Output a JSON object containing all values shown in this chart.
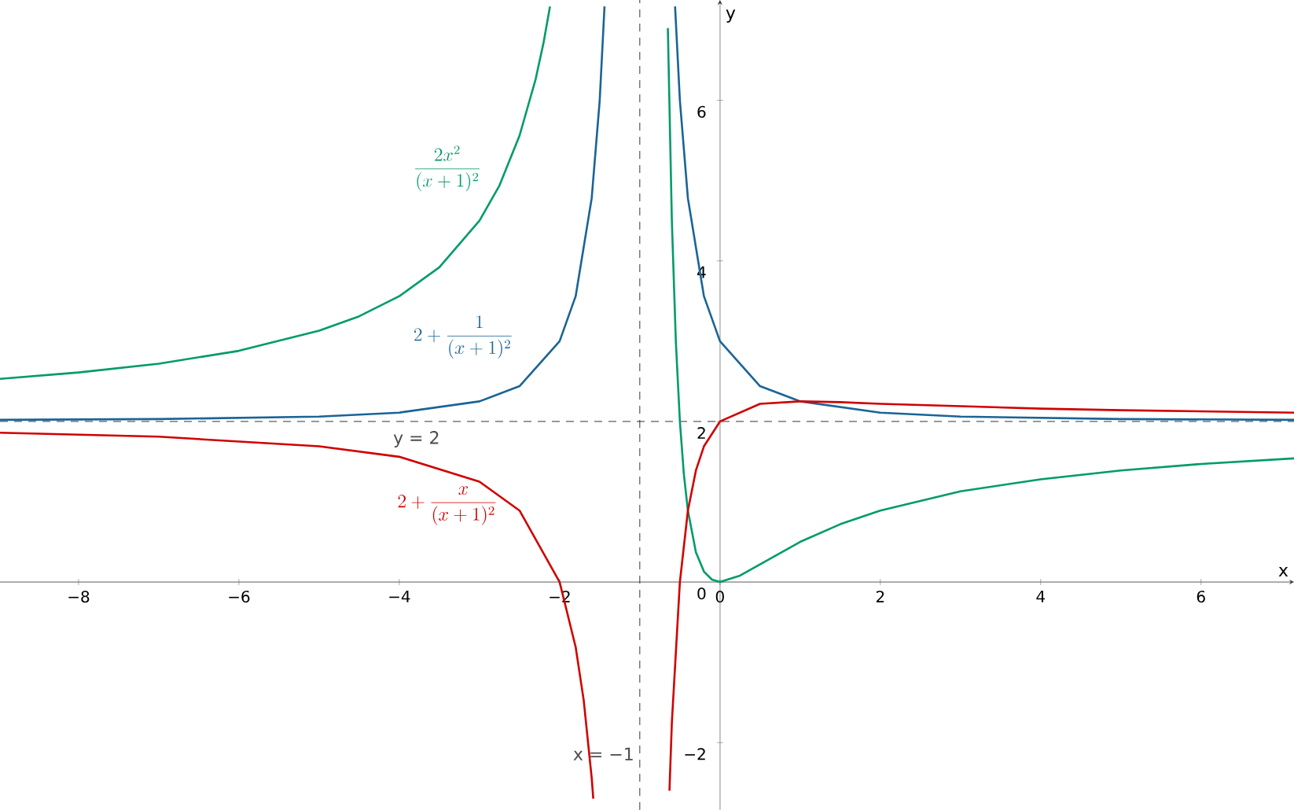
{
  "chart_data": {
    "type": "line",
    "xlabel": "x",
    "ylabel": "y",
    "xlim": [
      -8.98,
      7.16
    ],
    "ylim": [
      -2.84,
      7.25
    ],
    "xticks": [
      {
        "value": -8,
        "label": "−8"
      },
      {
        "value": -6,
        "label": "−6"
      },
      {
        "value": -4,
        "label": "−4"
      },
      {
        "value": -2,
        "label": "−2"
      },
      {
        "value": 0,
        "label": "0"
      },
      2,
      4,
      6
    ],
    "yticks": [
      {
        "value": -2,
        "label": "−2"
      },
      {
        "value": 0,
        "label": "0"
      },
      2,
      4,
      6
    ],
    "ref_lines": [
      {
        "axis": "x",
        "value": -1,
        "label": "x = −1",
        "color": "#000000",
        "line_style": "dashed"
      },
      {
        "axis": "y",
        "value": 2,
        "label": "y =  2",
        "color": "#000000",
        "line_style": "dashed"
      }
    ],
    "series": [
      {
        "name": "\\frac{2x^2}{(x+1)^2}",
        "color": "#009b6b",
        "x": [
          -8.98,
          -8,
          -7,
          -6,
          -5,
          -4.5,
          -4,
          -3.5,
          -3,
          -2.75,
          -2.5,
          -2.3,
          -2.2,
          -2.12,
          -1,
          -0.65,
          -0.6,
          -0.55,
          -0.5,
          -0.45,
          -0.4,
          -0.3,
          -0.2,
          -0.1,
          0,
          0.25,
          0.5,
          1,
          1.5,
          2,
          3,
          4,
          5,
          6,
          7.16
        ],
        "values": [
          2.53,
          2.61,
          2.72,
          2.88,
          3.13,
          3.31,
          3.56,
          3.92,
          4.5,
          4.94,
          5.56,
          6.26,
          6.72,
          7.17,
          null,
          6.9,
          4.5,
          2.99,
          2,
          1.34,
          0.89,
          0.37,
          0.13,
          0.03,
          0,
          0.08,
          0.22,
          0.5,
          0.72,
          0.89,
          1.13,
          1.28,
          1.39,
          1.47,
          1.54
        ]
      },
      {
        "name": "2+\\frac{1}{(x+1)^2}",
        "color": "#1a6496",
        "x": [
          -8.98,
          -7,
          -5,
          -4,
          -3,
          -2.5,
          -2,
          -1.8,
          -1.6,
          -1.5,
          -1.44,
          -1,
          -0.56,
          -0.5,
          -0.4,
          -0.2,
          0,
          0.5,
          1,
          2,
          3,
          5,
          7.16
        ],
        "values": [
          2.02,
          2.03,
          2.06,
          2.11,
          2.25,
          2.44,
          3,
          3.56,
          4.78,
          6,
          7.17,
          null,
          7.17,
          6,
          4.78,
          3.56,
          3,
          2.44,
          2.25,
          2.11,
          2.06,
          2.03,
          2.02
        ]
      },
      {
        "name": "2+\\frac{x}{(x+1)^2}",
        "color": "#d00000",
        "x": [
          -8.98,
          -7,
          -5,
          -4,
          -3,
          -2.5,
          -2,
          -1.8,
          -1.7,
          -1.6,
          -1.58,
          -1,
          -0.63,
          -0.6,
          -0.5,
          -0.4,
          -0.3,
          -0.2,
          0,
          0.5,
          1,
          1.5,
          2,
          3,
          4,
          5,
          7.16
        ],
        "values": [
          1.86,
          1.81,
          1.69,
          1.56,
          1.25,
          0.89,
          0,
          -0.81,
          -1.47,
          -2.44,
          -2.7,
          null,
          -2.6,
          -1.75,
          0,
          0.89,
          1.39,
          1.69,
          2,
          2.22,
          2.25,
          2.24,
          2.22,
          2.19,
          2.16,
          2.14,
          2.11
        ]
      }
    ]
  }
}
